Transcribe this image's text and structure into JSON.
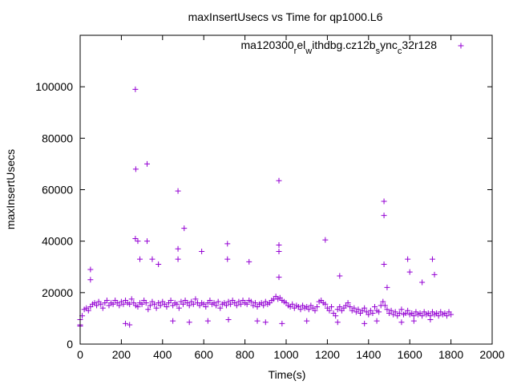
{
  "chart_data": {
    "type": "scatter",
    "title": "maxInsertUsecs vs Time for qp1000.L6",
    "xlabel": "Time(s)",
    "ylabel": "maxInsertUsecs",
    "xlim": [
      0,
      2000
    ],
    "ylim": [
      0,
      120000
    ],
    "xticks": [
      0,
      200,
      400,
      600,
      800,
      1000,
      1200,
      1400,
      1600,
      1800,
      2000
    ],
    "yticks": [
      0,
      20000,
      40000,
      60000,
      80000,
      100000
    ],
    "xtick_labels": [
      "0",
      "200",
      "400",
      "600",
      "800",
      "1000",
      "1200",
      "1400",
      "1600",
      "1800",
      "2000"
    ],
    "ytick_labels": [
      "0",
      "20000",
      "40000",
      "60000",
      "80000",
      "100000"
    ],
    "grid": false,
    "legend_position": "top-right",
    "series": [
      {
        "name": "ma120300_rel_withdbg.cz12b_sync_c32r128",
        "legend_parts": [
          {
            "t": "ma120300",
            "sub": false
          },
          {
            "t": "r",
            "sub": true
          },
          {
            "t": "el",
            "sub": false
          },
          {
            "t": "w",
            "sub": true
          },
          {
            "t": "ithdbg.cz12b",
            "sub": false
          },
          {
            "t": "s",
            "sub": true
          },
          {
            "t": "ync",
            "sub": false
          },
          {
            "t": "c",
            "sub": true
          },
          {
            "t": "32r128",
            "sub": false
          }
        ],
        "color": "#9400d3",
        "marker": "+",
        "x_start": 0,
        "x_step": 10,
        "values": [
          7500,
          11000,
          13500,
          14000,
          13000,
          14500,
          15500,
          16000,
          15000,
          16500,
          15500,
          14000,
          16000,
          17000,
          15000,
          16000,
          15500,
          17000,
          16000,
          15000,
          16500,
          15500,
          17000,
          16000,
          15500,
          17500,
          16000,
          15000,
          14500,
          16000,
          15500,
          17000,
          16000,
          13500,
          15000,
          16500,
          15500,
          14000,
          16000,
          15000,
          16500,
          15500,
          14500,
          16000,
          17000,
          15000,
          16000,
          15500,
          14000,
          16500,
          15500,
          17000,
          16000,
          15000,
          16500,
          15500,
          17500,
          16000,
          15000,
          16000,
          15500,
          14500,
          16000,
          17000,
          15500,
          16000,
          15000,
          16500,
          14000,
          15500,
          16000,
          15000,
          16500,
          15500,
          17000,
          16000,
          15000,
          16500,
          15500,
          17000,
          16000,
          15500,
          17000,
          16500,
          15000,
          16000,
          14500,
          15500,
          16000,
          15000,
          16500,
          15500,
          16000,
          17000,
          17500,
          18500,
          17500,
          18000,
          17000,
          16500,
          16000,
          15000,
          14500,
          15500,
          14000,
          15000,
          14500,
          13500,
          15000,
          14000,
          14500,
          13500,
          15000,
          14000,
          13000,
          14500,
          16500,
          17000,
          16000,
          15500,
          14000,
          13000,
          14500,
          12000,
          11000,
          13500,
          14500,
          13000,
          14000,
          15000,
          16000,
          14500,
          13000,
          14000,
          12500,
          13500,
          12000,
          13000,
          14000,
          12500,
          11500,
          13000,
          12000,
          14500,
          13000,
          12500,
          15000,
          16500,
          15000,
          13500,
          12000,
          13000,
          11500,
          12500,
          11000,
          12000,
          13500,
          11500,
          12000,
          13000,
          11500,
          12000,
          11000,
          12500,
          11500,
          12000,
          11000,
          12500,
          11500,
          12000,
          11000,
          12500,
          11500,
          12000,
          11000,
          12500,
          11500,
          12000,
          11000,
          12500,
          11500
        ],
        "extra_points": [
          [
            268,
            99000
          ],
          [
            270,
            68000
          ],
          [
            268,
            41000
          ],
          [
            280,
            40000
          ],
          [
            325,
            70000
          ],
          [
            325,
            40000
          ],
          [
            290,
            33000
          ],
          [
            350,
            33000
          ],
          [
            380,
            31000
          ],
          [
            475,
            59500
          ],
          [
            505,
            45000
          ],
          [
            475,
            37000
          ],
          [
            475,
            33000
          ],
          [
            590,
            36000
          ],
          [
            715,
            39000
          ],
          [
            715,
            33000
          ],
          [
            820,
            32000
          ],
          [
            965,
            63500
          ],
          [
            965,
            38500
          ],
          [
            965,
            36000
          ],
          [
            965,
            26000
          ],
          [
            1190,
            40500
          ],
          [
            1260,
            26500
          ],
          [
            1475,
            55500
          ],
          [
            1475,
            50000
          ],
          [
            1475,
            31000
          ],
          [
            1490,
            22000
          ],
          [
            1590,
            33000
          ],
          [
            1600,
            28000
          ],
          [
            1660,
            24000
          ],
          [
            1710,
            33000
          ],
          [
            1720,
            27000
          ],
          [
            50,
            29000
          ],
          [
            50,
            25000
          ],
          [
            0,
            7000
          ],
          [
            0,
            9500
          ],
          [
            220,
            8000
          ],
          [
            240,
            7500
          ],
          [
            450,
            9000
          ],
          [
            530,
            8500
          ],
          [
            620,
            9000
          ],
          [
            720,
            9500
          ],
          [
            860,
            9000
          ],
          [
            900,
            8500
          ],
          [
            980,
            8000
          ],
          [
            1100,
            9000
          ],
          [
            1250,
            8500
          ],
          [
            1380,
            8000
          ],
          [
            1440,
            9000
          ],
          [
            1560,
            8500
          ],
          [
            1620,
            9000
          ],
          [
            1700,
            9500
          ]
        ]
      }
    ]
  }
}
